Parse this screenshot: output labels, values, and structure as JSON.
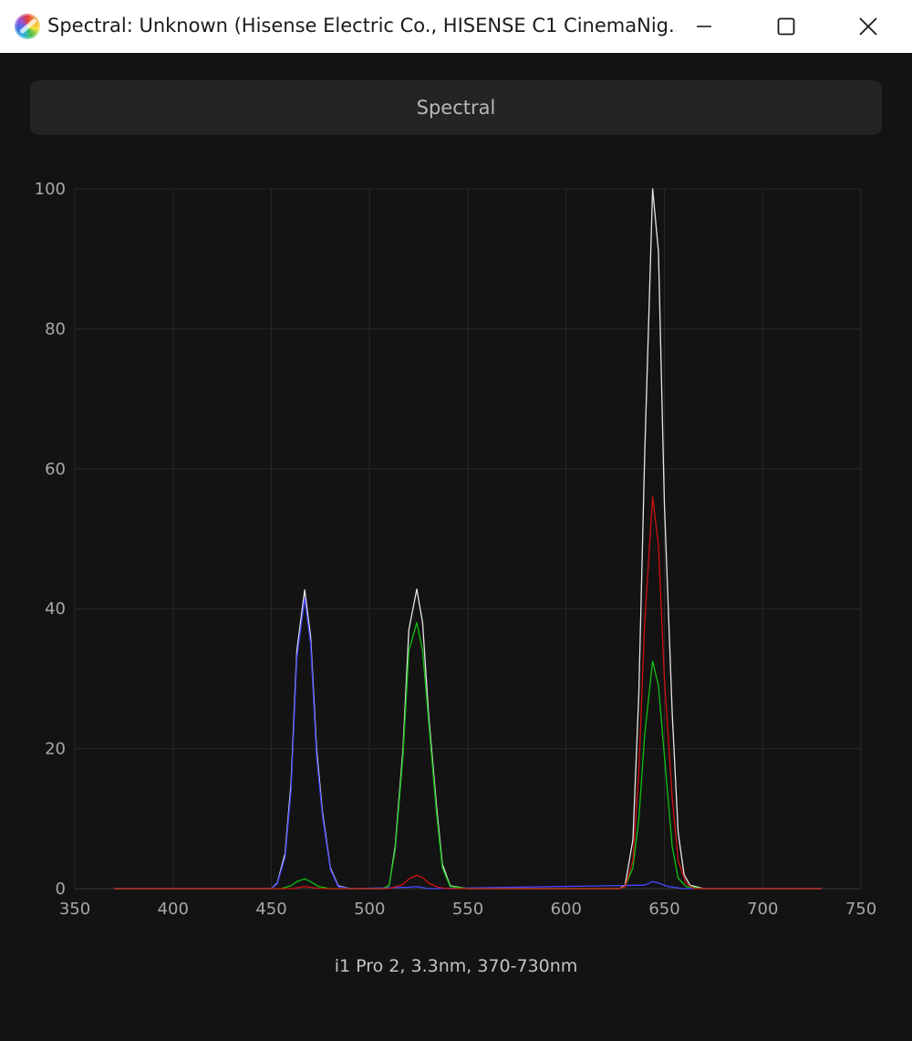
{
  "window": {
    "title": "Spectral: Unknown (Hisense Electric Co., HISENSE C1 CinemaNig..."
  },
  "header": {
    "label": "Spectral"
  },
  "footer": {
    "text": "i1 Pro 2, 3.3nm, 370-730nm"
  },
  "colors": {
    "white": "#e6e6e6",
    "red": "#d01010",
    "green": "#10c010",
    "blue": "#4646ff",
    "grid": "#272727",
    "tick_text": "#a8a8a8"
  },
  "chart_data": {
    "type": "line",
    "title": "",
    "xlabel": "",
    "ylabel": "",
    "xlim": [
      350,
      750
    ],
    "ylim": [
      0,
      100
    ],
    "x_ticks": [
      "350",
      "400",
      "450",
      "500",
      "550",
      "600",
      "650",
      "700",
      "750"
    ],
    "y_ticks": [
      "0",
      "20",
      "40",
      "60",
      "80",
      "100"
    ],
    "grid": true,
    "series": [
      {
        "color_key": "white",
        "points": [
          [
            370,
            0
          ],
          [
            450,
            0
          ],
          [
            453,
            0.8
          ],
          [
            457,
            5
          ],
          [
            460,
            15
          ],
          [
            463,
            34
          ],
          [
            467,
            42.7
          ],
          [
            470,
            36
          ],
          [
            473,
            20
          ],
          [
            476,
            11
          ],
          [
            480,
            3
          ],
          [
            484,
            0.4
          ],
          [
            490,
            0
          ],
          [
            507,
            0
          ],
          [
            510,
            0.5
          ],
          [
            513,
            6
          ],
          [
            517,
            20
          ],
          [
            520,
            37
          ],
          [
            524,
            42.8
          ],
          [
            527,
            38
          ],
          [
            530,
            25
          ],
          [
            534,
            12
          ],
          [
            537,
            3.5
          ],
          [
            541,
            0.4
          ],
          [
            550,
            0
          ],
          [
            627,
            0
          ],
          [
            630,
            0.5
          ],
          [
            634,
            7
          ],
          [
            637,
            28
          ],
          [
            640,
            62
          ],
          [
            644,
            100
          ],
          [
            647,
            91
          ],
          [
            650,
            55
          ],
          [
            654,
            25
          ],
          [
            657,
            8
          ],
          [
            660,
            2
          ],
          [
            663,
            0.5
          ],
          [
            670,
            0
          ],
          [
            730,
            0
          ]
        ]
      },
      {
        "color_key": "blue",
        "points": [
          [
            370,
            0
          ],
          [
            450,
            0
          ],
          [
            453,
            0.7
          ],
          [
            457,
            4.5
          ],
          [
            460,
            14
          ],
          [
            463,
            33
          ],
          [
            467,
            41.5
          ],
          [
            470,
            35
          ],
          [
            473,
            19
          ],
          [
            476,
            10.5
          ],
          [
            480,
            2.8
          ],
          [
            484,
            0.3
          ],
          [
            490,
            0
          ],
          [
            520,
            0.2
          ],
          [
            524,
            0.3
          ],
          [
            530,
            0
          ],
          [
            640,
            0.5
          ],
          [
            644,
            1
          ],
          [
            647,
            0.8
          ],
          [
            652,
            0.3
          ],
          [
            660,
            0
          ],
          [
            730,
            0
          ]
        ]
      },
      {
        "color_key": "green",
        "points": [
          [
            370,
            0
          ],
          [
            455,
            0
          ],
          [
            460,
            0.4
          ],
          [
            463,
            1
          ],
          [
            467,
            1.4
          ],
          [
            470,
            1
          ],
          [
            474,
            0.3
          ],
          [
            480,
            0
          ],
          [
            507,
            0
          ],
          [
            510,
            0.5
          ],
          [
            513,
            5.5
          ],
          [
            517,
            19
          ],
          [
            520,
            34
          ],
          [
            524,
            38
          ],
          [
            527,
            34
          ],
          [
            530,
            24
          ],
          [
            534,
            11
          ],
          [
            537,
            3
          ],
          [
            541,
            0.3
          ],
          [
            550,
            0
          ],
          [
            627,
            0
          ],
          [
            630,
            0.3
          ],
          [
            634,
            3
          ],
          [
            637,
            10
          ],
          [
            640,
            22
          ],
          [
            644,
            32.5
          ],
          [
            647,
            29
          ],
          [
            650,
            19
          ],
          [
            654,
            6
          ],
          [
            657,
            1.5
          ],
          [
            661,
            0.3
          ],
          [
            670,
            0
          ],
          [
            730,
            0
          ]
        ]
      },
      {
        "color_key": "red",
        "points": [
          [
            370,
            0
          ],
          [
            460,
            0
          ],
          [
            463,
            0.1
          ],
          [
            467,
            0.3
          ],
          [
            470,
            0.2
          ],
          [
            475,
            0
          ],
          [
            510,
            0
          ],
          [
            517,
            0.6
          ],
          [
            520,
            1.4
          ],
          [
            524,
            1.9
          ],
          [
            527,
            1.6
          ],
          [
            530,
            0.8
          ],
          [
            535,
            0.2
          ],
          [
            540,
            0
          ],
          [
            627,
            0
          ],
          [
            630,
            0.3
          ],
          [
            634,
            4
          ],
          [
            637,
            17
          ],
          [
            640,
            38
          ],
          [
            644,
            56
          ],
          [
            647,
            49
          ],
          [
            650,
            30
          ],
          [
            654,
            13
          ],
          [
            657,
            4
          ],
          [
            661,
            0.8
          ],
          [
            665,
            0
          ],
          [
            730,
            0
          ]
        ]
      }
    ]
  }
}
